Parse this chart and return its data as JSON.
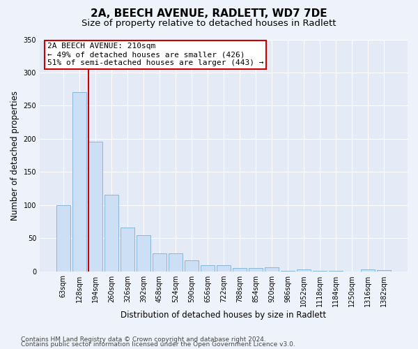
{
  "title": "2A, BEECH AVENUE, RADLETT, WD7 7DE",
  "subtitle": "Size of property relative to detached houses in Radlett",
  "xlabel": "Distribution of detached houses by size in Radlett",
  "ylabel": "Number of detached properties",
  "categories": [
    "63sqm",
    "128sqm",
    "194sqm",
    "260sqm",
    "326sqm",
    "392sqm",
    "458sqm",
    "524sqm",
    "590sqm",
    "656sqm",
    "722sqm",
    "788sqm",
    "854sqm",
    "920sqm",
    "986sqm",
    "1052sqm",
    "1118sqm",
    "1184sqm",
    "1250sqm",
    "1316sqm",
    "1382sqm"
  ],
  "values": [
    100,
    270,
    196,
    115,
    66,
    54,
    27,
    27,
    16,
    9,
    9,
    5,
    5,
    6,
    1,
    3,
    1,
    1,
    0,
    3,
    2
  ],
  "bar_color": "#ccdff5",
  "bar_edge_color": "#7aafd4",
  "vline_x_bar_index": 2,
  "marker_label": "2A BEECH AVENUE: 210sqm",
  "annotation_line1": "← 49% of detached houses are smaller (426)",
  "annotation_line2": "51% of semi-detached houses are larger (443) →",
  "annotation_box_color": "#ffffff",
  "annotation_box_edge": "#cc0000",
  "vline_color": "#cc0000",
  "footer1": "Contains HM Land Registry data © Crown copyright and database right 2024.",
  "footer2": "Contains public sector information licensed under the Open Government Licence v3.0.",
  "ylim": [
    0,
    350
  ],
  "title_fontsize": 11,
  "subtitle_fontsize": 9.5,
  "axis_label_fontsize": 8.5,
  "tick_fontsize": 7,
  "annotation_fontsize": 8,
  "footer_fontsize": 6.5,
  "background_color": "#eef2fa",
  "plot_bg_color": "#e4eaf6"
}
